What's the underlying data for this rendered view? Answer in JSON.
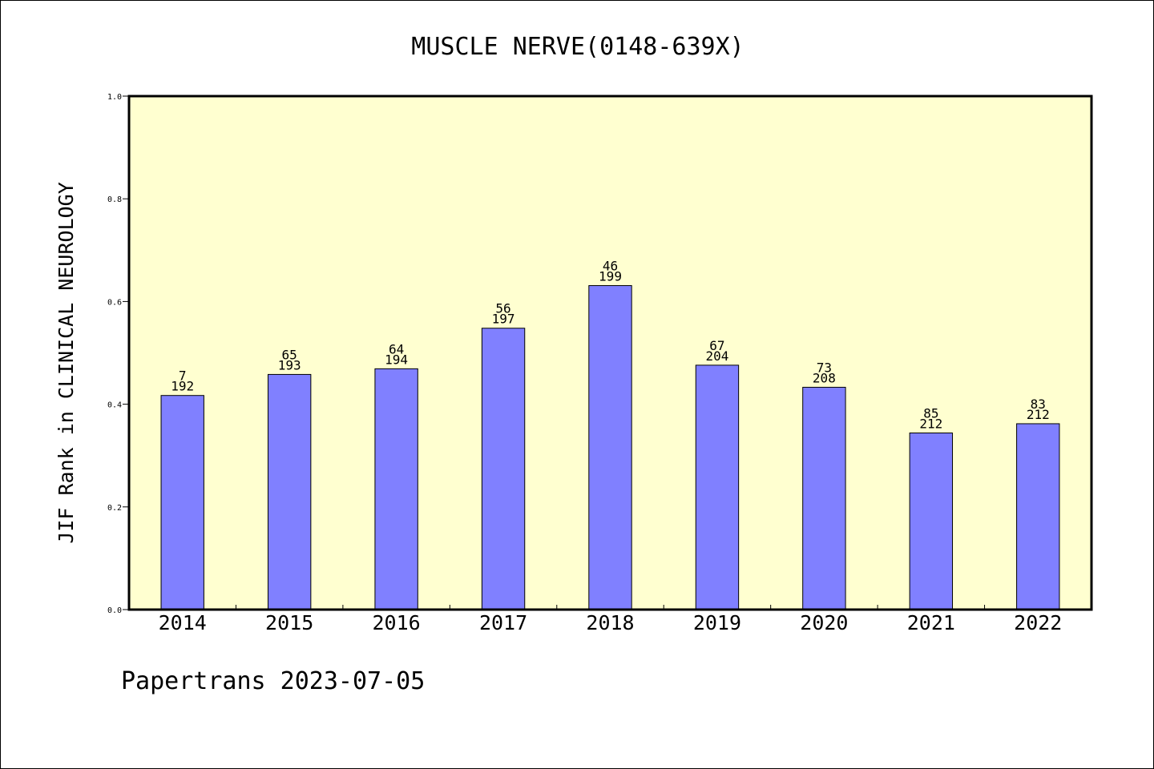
{
  "chart_data": {
    "type": "bar",
    "title": "MUSCLE NERVE(0148-639X)",
    "ylabel": "JIF Rank in CLINICAL NEUROLOGY",
    "xlabel": "",
    "categories": [
      "2014",
      "2015",
      "2016",
      "2017",
      "2018",
      "2019",
      "2020",
      "2021",
      "2022"
    ],
    "values": [
      0.417,
      0.458,
      0.469,
      0.548,
      0.631,
      0.476,
      0.433,
      0.344,
      0.362
    ],
    "rank": [
      "7",
      "65",
      "64",
      "56",
      "46",
      "67",
      "73",
      "85",
      "83"
    ],
    "total": [
      "192",
      "193",
      "194",
      "197",
      "199",
      "204",
      "208",
      "212",
      "212"
    ],
    "ylim": [
      0,
      1.0
    ],
    "yticks": [
      "0.0",
      "0.2",
      "0.4",
      "0.6",
      "0.8",
      "1.0"
    ],
    "grid": false,
    "colors": {
      "bar": "#8080ff",
      "plot_bg": "#ffffd0",
      "axis": "#000000"
    }
  },
  "footer": "Papertrans 2023-07-05"
}
